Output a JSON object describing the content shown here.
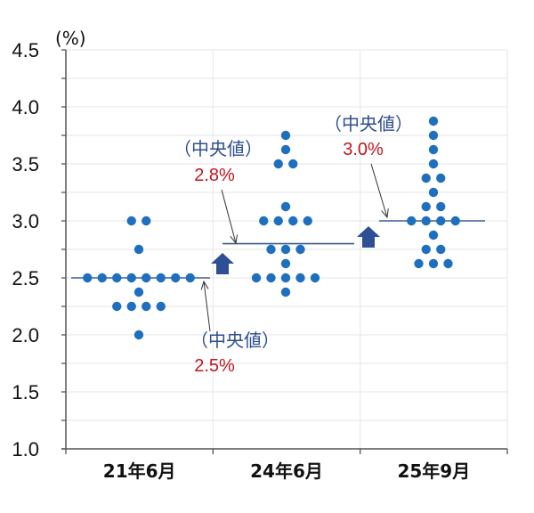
{
  "chart_data": {
    "type": "scatter",
    "subtype": "dot-plot",
    "title": "",
    "unit_label": "(%)",
    "xlabel": "",
    "ylabel": "(%)",
    "ylim": [
      1.0,
      4.5
    ],
    "yticks": [
      "1.0",
      "1.5",
      "2.0",
      "2.5",
      "3.0",
      "3.5",
      "4.0",
      "4.5"
    ],
    "minor_tick_step": 0.25,
    "grid": true,
    "legend": null,
    "categories": [
      "21年6月",
      "24年6月",
      "25年9月"
    ],
    "series": [
      {
        "name": "21年6月",
        "values": [
          3.0,
          3.0,
          2.75,
          2.5,
          2.5,
          2.5,
          2.5,
          2.5,
          2.5,
          2.5,
          2.5,
          2.375,
          2.25,
          2.25,
          2.25,
          2.25,
          2.0
        ],
        "median": 2.5
      },
      {
        "name": "24年6月",
        "values": [
          3.75,
          3.625,
          3.5,
          3.5,
          3.125,
          3.0,
          3.0,
          3.0,
          3.0,
          2.75,
          2.75,
          2.75,
          2.625,
          2.5,
          2.5,
          2.5,
          2.5,
          2.5,
          2.375
        ],
        "median": 2.8
      },
      {
        "name": "25年9月",
        "values": [
          3.875,
          3.75,
          3.625,
          3.5,
          3.375,
          3.375,
          3.25,
          3.125,
          3.125,
          3.0,
          3.0,
          3.0,
          3.0,
          2.875,
          2.75,
          2.75,
          2.625,
          2.625,
          2.625
        ],
        "median": 3.0
      }
    ],
    "annotations": [
      {
        "label": "（中央値）",
        "value": "2.5%",
        "category": "21年6月"
      },
      {
        "label": "（中央値）",
        "value": "2.8%",
        "category": "24年6月"
      },
      {
        "label": "（中央値）",
        "value": "3.0%",
        "category": "25年9月"
      }
    ],
    "colors": {
      "dot": "#1f6fbf",
      "median_line": "#3a5f8f",
      "up_arrow": "#2e4f96",
      "annotation_label": "#2f4f8f",
      "annotation_value": "#c0161f",
      "grid": "#e6e6e6",
      "axis": "#555555"
    }
  }
}
